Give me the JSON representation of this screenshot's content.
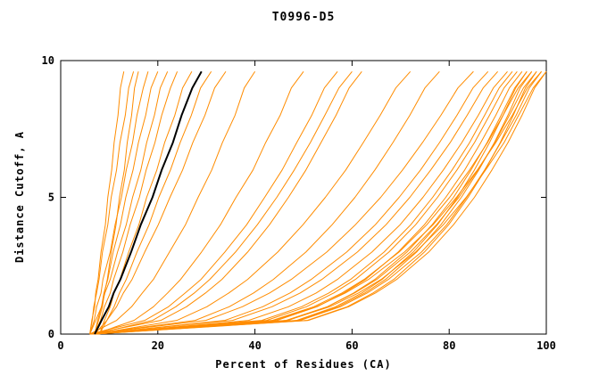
{
  "chart_data": {
    "type": "line",
    "title": "T0996-D5",
    "xlabel": "Percent of Residues (CA)",
    "ylabel": "Distance Cutoff, A",
    "xlim": [
      0,
      100
    ],
    "ylim": [
      0,
      10
    ],
    "x_ticks": [
      0,
      20,
      40,
      60,
      80,
      100
    ],
    "y_ticks": [
      0,
      5,
      10
    ],
    "grid": false,
    "background": "#ffffff",
    "line_color_orange": "#ff8c00",
    "line_color_highlight": "#000000",
    "y_values": [
      0,
      0.5,
      1,
      1.5,
      2,
      3,
      4,
      5,
      6,
      7,
      8,
      9,
      9.6
    ],
    "series": [
      {
        "color": "#ff8c00",
        "x": [
          6,
          6.4,
          7,
          7.2,
          7.7,
          8.3,
          9.2,
          9.7,
          10.5,
          11,
          11.8,
          12.3,
          13
        ]
      },
      {
        "color": "#ff8c00",
        "x": [
          6,
          6.5,
          6.8,
          7.4,
          7.9,
          8.6,
          9.7,
          10.4,
          11.5,
          12.2,
          13.3,
          14,
          15
        ]
      },
      {
        "color": "#ff8c00",
        "x": [
          7,
          7.8,
          8.6,
          9,
          9.6,
          10.4,
          11.4,
          12.1,
          13.1,
          13.7,
          14.6,
          15.2,
          16
        ]
      },
      {
        "color": "#ff8c00",
        "x": [
          6,
          6.9,
          7.4,
          8.3,
          8.7,
          10.2,
          11.2,
          12.5,
          13.5,
          14.8,
          15.7,
          17,
          18
        ]
      },
      {
        "color": "#ff8c00",
        "x": [
          7,
          7.6,
          8.4,
          8.9,
          9.7,
          10.8,
          12.3,
          13.4,
          14.9,
          16,
          17.5,
          18.6,
          20
        ]
      },
      {
        "color": "#ff8c00",
        "x": [
          6,
          7.2,
          8.4,
          9.1,
          10.2,
          11.7,
          13.5,
          14.8,
          16.5,
          17.7,
          19.3,
          20.5,
          22
        ]
      },
      {
        "color": "#ff8c00",
        "x": [
          7,
          8.2,
          9,
          10.2,
          10.9,
          12.8,
          14.3,
          16.2,
          17.6,
          19.4,
          20.8,
          22.6,
          24
        ]
      },
      {
        "color": "#ff8c00",
        "x": [
          8,
          9,
          10.2,
          11,
          12.2,
          14,
          16.1,
          17.7,
          19.8,
          21.4,
          23.5,
          25.1,
          27
        ]
      },
      {
        "color": "#ff8c00",
        "x": [
          8,
          9.5,
          11,
          12.1,
          13.5,
          15.7,
          18.2,
          20.2,
          22.6,
          24.6,
          26.9,
          28.8,
          31
        ]
      },
      {
        "color": "#ff8c00",
        "x": [
          7,
          9.5,
          11.5,
          12.9,
          14.7,
          17.3,
          20.1,
          22.5,
          25.1,
          27.2,
          29.7,
          31.7,
          34
        ]
      },
      {
        "color": "#ff8c00",
        "x": [
          6,
          11.5,
          14.6,
          16.8,
          19.1,
          22.4,
          25.7,
          28.3,
          31.1,
          33.3,
          35.9,
          37.8,
          40
        ]
      },
      {
        "color": "#ff8c00",
        "x": [
          7,
          15.1,
          19.1,
          22,
          24.7,
          29,
          32.9,
          36.1,
          39.6,
          42.2,
          45.2,
          47.5,
          50
        ]
      },
      {
        "color": "#ff8c00",
        "x": [
          6,
          17.3,
          22.2,
          25.6,
          28.9,
          33.8,
          38.3,
          42,
          45.6,
          48.6,
          51.7,
          54.3,
          57
        ]
      },
      {
        "color": "#ff8c00",
        "x": [
          7,
          18.9,
          23.7,
          27.5,
          30.7,
          36,
          40.5,
          44.5,
          48.1,
          51.4,
          54.4,
          57.3,
          60
        ]
      },
      {
        "color": "#ff8c00",
        "x": [
          6,
          20.6,
          25.9,
          29.8,
          33.2,
          38.5,
          43,
          46.9,
          50.5,
          53.6,
          56.7,
          59.4,
          62
        ]
      },
      {
        "color": "#ff8c00",
        "x": [
          7,
          23.9,
          30.1,
          34.6,
          38.5,
          44.7,
          49.9,
          54.5,
          58.7,
          62.3,
          65.8,
          69,
          72
        ]
      },
      {
        "color": "#ff8c00",
        "x": [
          6,
          27.7,
          34.7,
          39.7,
          43.8,
          50.5,
          55.9,
          60.6,
          64.7,
          68.4,
          71.9,
          75,
          78
        ]
      },
      {
        "color": "#ff8c00",
        "x": [
          6,
          29.9,
          37.4,
          43,
          47.5,
          54.8,
          60.7,
          65.9,
          70.4,
          74.5,
          78.3,
          81.8,
          85
        ]
      },
      {
        "color": "#ff8c00",
        "x": [
          7,
          33.8,
          41.6,
          47.2,
          51.6,
          58.9,
          64.8,
          69.7,
          74.1,
          78,
          81.6,
          84.9,
          88
        ]
      },
      {
        "color": "#ff8c00",
        "x": [
          6,
          35.4,
          43.5,
          49.3,
          53.8,
          61.1,
          67,
          71.9,
          76.2,
          80.2,
          83.7,
          87,
          90
        ]
      },
      {
        "color": "#ff8c00",
        "x": [
          7,
          38.7,
          46.9,
          52.6,
          57,
          64.1,
          69.9,
          74.6,
          78.8,
          82.6,
          86,
          89.1,
          92
        ]
      },
      {
        "color": "#ff8c00",
        "x": [
          6,
          41.4,
          49.6,
          55.2,
          59.7,
          66.6,
          72.1,
          76.6,
          80.6,
          84.2,
          87.3,
          90.3,
          93
        ]
      },
      {
        "color": "#ff8c00",
        "x": [
          7,
          42.4,
          50.6,
          56.2,
          60.7,
          67.6,
          73.1,
          77.6,
          81.6,
          85.2,
          88.3,
          91.3,
          94
        ]
      },
      {
        "color": "#ff8c00",
        "x": [
          6,
          44.5,
          52.8,
          58.3,
          62.8,
          69.5,
          74.9,
          79.3,
          83.2,
          86.5,
          89.6,
          92.4,
          95
        ]
      },
      {
        "color": "#ff8c00",
        "x": [
          7,
          46.8,
          54.9,
          60.3,
          64.7,
          71.3,
          76.5,
          80.9,
          84.5,
          87.8,
          90.7,
          93.5,
          96
        ]
      },
      {
        "color": "#ff8c00",
        "x": [
          6,
          48.6,
          56.6,
          62,
          66.2,
          72.6,
          77.6,
          81.7,
          85.2,
          88.3,
          91.1,
          93.7,
          96
        ]
      },
      {
        "color": "#ff8c00",
        "x": [
          7,
          43.6,
          52.1,
          57.9,
          62.5,
          69.7,
          75.4,
          80.1,
          84.2,
          87.9,
          91.1,
          94.2,
          97
        ]
      },
      {
        "color": "#ff8c00",
        "x": [
          6,
          49,
          57.1,
          62.6,
          66.9,
          73.3,
          78.3,
          82.5,
          86.1,
          89.3,
          92.1,
          94.6,
          97
        ]
      },
      {
        "color": "#ff8c00",
        "x": [
          7,
          46.4,
          54.9,
          60.5,
          65.1,
          72,
          77.4,
          82,
          85.9,
          89.4,
          92.4,
          95.3,
          98
        ]
      },
      {
        "color": "#ff8c00",
        "x": [
          6,
          50.8,
          59,
          64.3,
          68.6,
          74.9,
          79.9,
          83.9,
          87.4,
          90.5,
          93.2,
          95.7,
          98
        ]
      },
      {
        "color": "#ff8c00",
        "x": [
          7,
          49.3,
          57.6,
          63.1,
          67.5,
          74.3,
          79.5,
          83.6,
          87.3,
          90.6,
          93.8,
          96.5,
          99
        ]
      },
      {
        "color": "#ff8c00",
        "x": [
          6,
          43.9,
          52.6,
          58.6,
          63.4,
          70.8,
          76.7,
          81.5,
          85.8,
          89.6,
          93,
          96.1,
          99
        ]
      },
      {
        "color": "#ff8c00",
        "x": [
          7,
          51,
          59.3,
          64.8,
          69.2,
          75.8,
          80.9,
          85.2,
          88.8,
          92.1,
          95,
          97.6,
          100
        ]
      },
      {
        "color": "#ff8c00",
        "x": [
          6,
          46.7,
          55.4,
          61.3,
          66,
          73.1,
          78.8,
          83.5,
          87.5,
          91.3,
          94.3,
          97.3,
          100
        ]
      }
    ],
    "highlight": {
      "color": "#000000",
      "x": [
        7,
        8.4,
        9.9,
        10.9,
        12.3,
        14.5,
        16.5,
        18.9,
        20.8,
        23.1,
        24.9,
        27.1,
        29
      ]
    }
  }
}
